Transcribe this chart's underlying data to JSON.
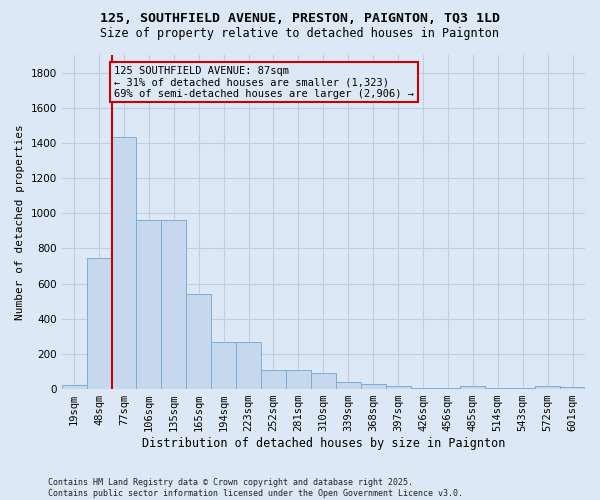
{
  "title": "125, SOUTHFIELD AVENUE, PRESTON, PAIGNTON, TQ3 1LD",
  "subtitle": "Size of property relative to detached houses in Paignton",
  "xlabel": "Distribution of detached houses by size in Paignton",
  "ylabel": "Number of detached properties",
  "footer": "Contains HM Land Registry data © Crown copyright and database right 2025.\nContains public sector information licensed under the Open Government Licence v3.0.",
  "categories": [
    "19sqm",
    "48sqm",
    "77sqm",
    "106sqm",
    "135sqm",
    "165sqm",
    "194sqm",
    "223sqm",
    "252sqm",
    "281sqm",
    "310sqm",
    "339sqm",
    "368sqm",
    "397sqm",
    "426sqm",
    "456sqm",
    "485sqm",
    "514sqm",
    "543sqm",
    "572sqm",
    "601sqm"
  ],
  "values": [
    22,
    745,
    1435,
    960,
    960,
    540,
    268,
    268,
    108,
    108,
    90,
    40,
    28,
    15,
    8,
    8,
    20,
    8,
    8,
    15,
    10
  ],
  "bar_color": "#c5d8ed",
  "bar_edge_color": "#7aaed6",
  "grid_color": "#c0cfe0",
  "background_color": "#dce8f5",
  "annotation_box_text": "125 SOUTHFIELD AVENUE: 87sqm\n← 31% of detached houses are smaller (1,323)\n69% of semi-detached houses are larger (2,906) →",
  "annotation_box_facecolor": "#dce8f5",
  "annotation_box_edgecolor": "#cc0000",
  "property_line_color": "#cc0000",
  "ylim": [
    0,
    1900
  ],
  "yticks": [
    0,
    200,
    400,
    600,
    800,
    1000,
    1200,
    1400,
    1600,
    1800
  ],
  "title_fontsize": 9.5,
  "subtitle_fontsize": 8.5,
  "ylabel_fontsize": 8,
  "xlabel_fontsize": 8.5,
  "tick_fontsize": 7.5,
  "annotation_fontsize": 7.5,
  "footer_fontsize": 6.0
}
